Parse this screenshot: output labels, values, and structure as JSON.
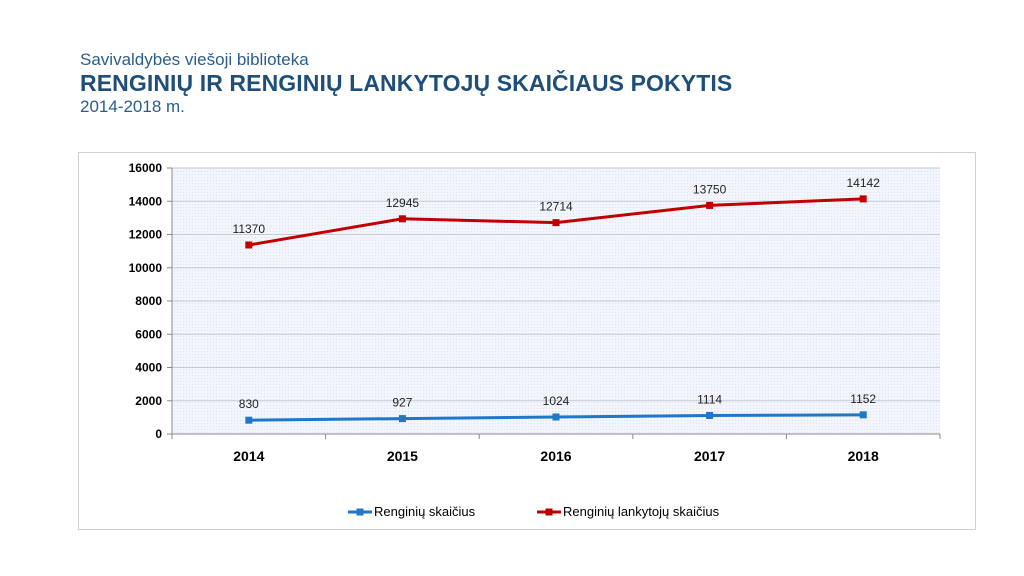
{
  "header": {
    "superscript": "Savivaldybės viešoji biblioteka",
    "title": "RENGINIŲ IR RENGINIŲ LANKYTOJŲ SKAIČIAUS  POKYTIS",
    "years": "2014-2018 m."
  },
  "chart_data": {
    "type": "line",
    "x": [
      "2014",
      "2015",
      "2016",
      "2017",
      "2018"
    ],
    "ylim": [
      0,
      16000
    ],
    "yticks": [
      0,
      2000,
      4000,
      6000,
      8000,
      10000,
      12000,
      14000,
      16000
    ],
    "grid": true,
    "legend": "bottom",
    "series": [
      {
        "name": "Renginių skaičius",
        "color": "#1f77c8",
        "values": [
          830,
          927,
          1024,
          1114,
          1152
        ]
      },
      {
        "name": "Renginių lankytojų skaičius",
        "color": "#c00000",
        "values": [
          11370,
          12945,
          12714,
          13750,
          14142
        ]
      }
    ]
  }
}
